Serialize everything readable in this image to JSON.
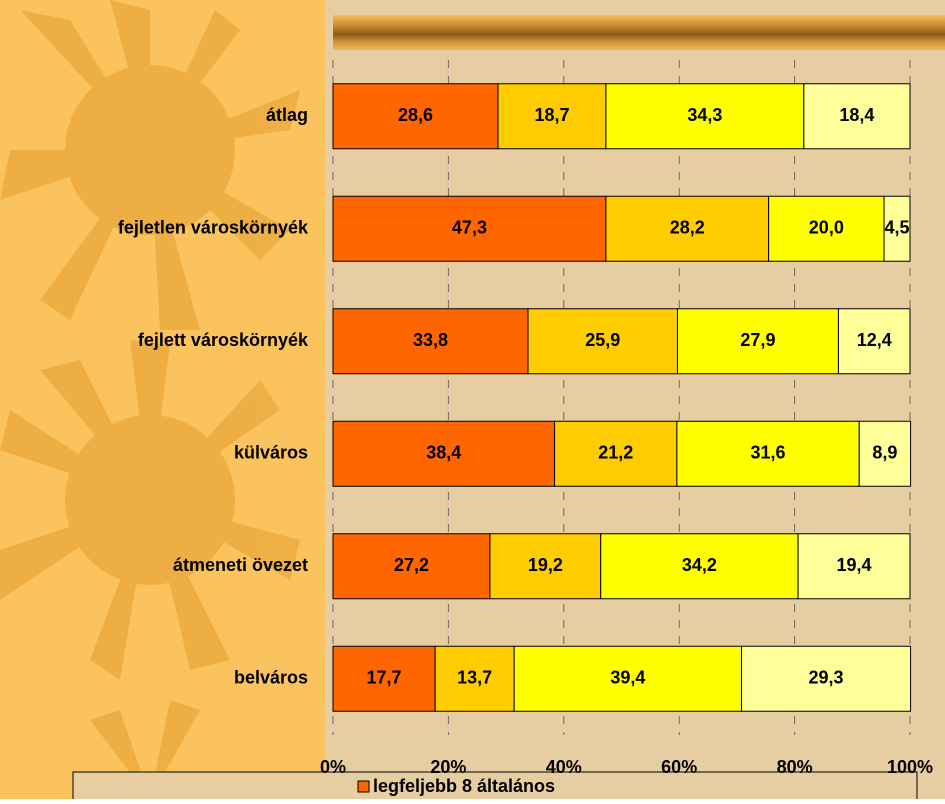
{
  "chart_data": {
    "type": "stacked-bar-horizontal",
    "categories": [
      "átlag",
      "fejletlen városkörnyék",
      "fejlett városkörnyék",
      "külváros",
      "átmeneti övezet",
      "belváros"
    ],
    "series": [
      {
        "name": "legfeljebb 8 általános",
        "color": "#ff6600",
        "values": [
          28.6,
          47.3,
          33.8,
          38.4,
          27.2,
          17.7
        ],
        "value_labels": [
          "28,6",
          "47,3",
          "33,8",
          "38,4",
          "27,2",
          "17,7"
        ]
      },
      {
        "color": "#ffcc00",
        "values": [
          18.7,
          28.2,
          25.9,
          21.2,
          19.2,
          13.7
        ],
        "value_labels": [
          "18,7",
          "28,2",
          "25,9",
          "21,2",
          "19,2",
          "13,7"
        ]
      },
      {
        "color": "#ffff00",
        "values": [
          34.3,
          20.0,
          27.9,
          31.6,
          34.2,
          39.4
        ],
        "value_labels": [
          "34,3",
          "20,0",
          "27,9",
          "31,6",
          "34,2",
          "39,4"
        ]
      },
      {
        "color": "#ffff99",
        "values": [
          18.4,
          4.5,
          12.4,
          8.9,
          19.4,
          29.3
        ],
        "value_labels": [
          "18,4",
          "4,5",
          "12,4",
          "8,9",
          "19,4",
          "29,3"
        ]
      }
    ],
    "xlim": [
      0,
      100
    ],
    "xticks": [
      {
        "value": 0,
        "label": "0%"
      },
      {
        "value": 20,
        "label": "20%"
      },
      {
        "value": 40,
        "label": "40%"
      },
      {
        "value": 60,
        "label": "60%"
      },
      {
        "value": 80,
        "label": "80%"
      },
      {
        "value": 100,
        "label": "100%"
      }
    ],
    "grid": true
  }
}
